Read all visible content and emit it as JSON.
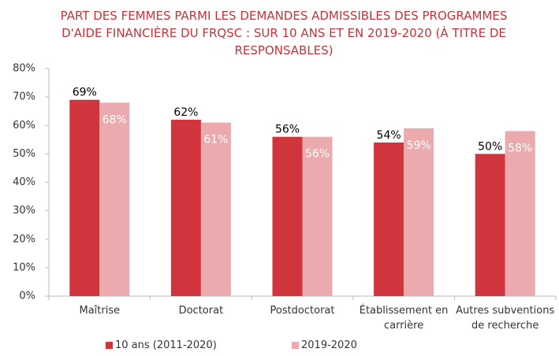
{
  "chart_data": {
    "type": "bar",
    "title": "PART DES FEMMES PARMI LES DEMANDES ADMISSIBLES DES PROGRAMMES D'AIDE FINANCIÈRE DU FRQSC : SUR 10 ANS ET EN 2019-2020 (À TITRE DE RESPONSABLES)",
    "categories": [
      "Maîtrise",
      "Doctorat",
      "Postdoctorat",
      "Établissement en carrière",
      "Autres subventions de recherche"
    ],
    "series": [
      {
        "name": "10 ans (2011-2020)",
        "color": "#d0343c",
        "values": [
          69,
          62,
          56,
          54,
          50
        ],
        "value_labels": [
          "69%",
          "62%",
          "56%",
          "54%",
          "50%"
        ]
      },
      {
        "name": "2019-2020",
        "color": "#eaaaae",
        "values": [
          68,
          61,
          56,
          59,
          58
        ],
        "value_labels": [
          "68%",
          "61%",
          "56%",
          "59%",
          "58%"
        ]
      }
    ],
    "ylim": [
      0,
      80
    ],
    "yticks": [
      {
        "value": 0,
        "label": "0%"
      },
      {
        "value": 10,
        "label": "10%"
      },
      {
        "value": 20,
        "label": "20%"
      },
      {
        "value": 30,
        "label": "30%"
      },
      {
        "value": 40,
        "label": "40%"
      },
      {
        "value": 50,
        "label": "50%"
      },
      {
        "value": 60,
        "label": "60%"
      },
      {
        "value": 70,
        "label": "70%"
      },
      {
        "value": 80,
        "label": "80%"
      }
    ],
    "grid": false
  }
}
